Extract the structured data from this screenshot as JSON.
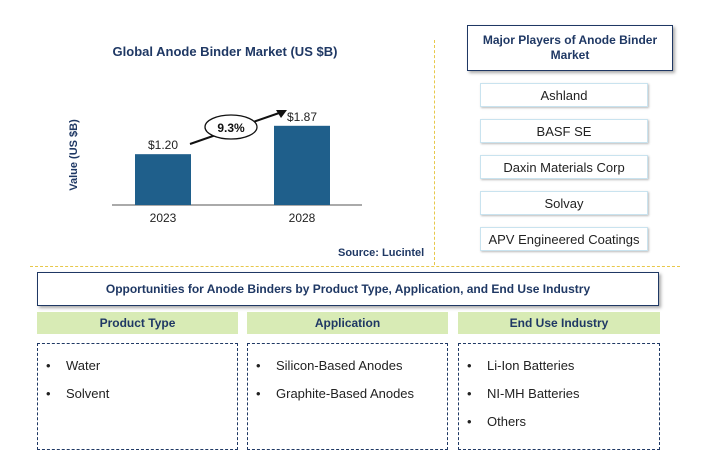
{
  "chart": {
    "title": "Global Anode Binder Market (US $B)",
    "ylabel": "Value (US $B)",
    "source": "Source: Lucintel",
    "cagr_label": "9.3%"
  },
  "chart_data": {
    "type": "bar",
    "title": "Global Anode Binder Market (US $B)",
    "ylabel": "Value (US $B)",
    "categories": [
      "2023",
      "2028"
    ],
    "values": [
      1.2,
      1.87
    ],
    "value_labels": [
      "$1.20",
      "$1.87"
    ],
    "annotation": "9.3%",
    "bar_color": "#1f5f8b",
    "ylim": [
      0,
      2.2
    ],
    "grid": false
  },
  "players": {
    "heading": "Major Players of Anode Binder Market",
    "items": [
      "Ashland",
      "BASF SE",
      "Daxin Materials Corp",
      "Solvay",
      "APV Engineered Coatings"
    ]
  },
  "opportunities": {
    "heading": "Opportunities for Anode Binders by Product Type, Application, and End Use Industry",
    "columns": [
      {
        "title": "Product Type",
        "items": [
          "Water",
          "Solvent"
        ]
      },
      {
        "title": "Application",
        "items": [
          "Silicon-Based Anodes",
          "Graphite-Based Anodes"
        ]
      },
      {
        "title": "End Use Industry",
        "items": [
          "Li-Ion Batteries",
          "NI-MH Batteries",
          "Others"
        ]
      }
    ]
  },
  "colors": {
    "header_text": "#1f3864",
    "column_header_bg": "#d8ebb5",
    "divider": "#e8c84a"
  },
  "bullet_glyph": "•"
}
